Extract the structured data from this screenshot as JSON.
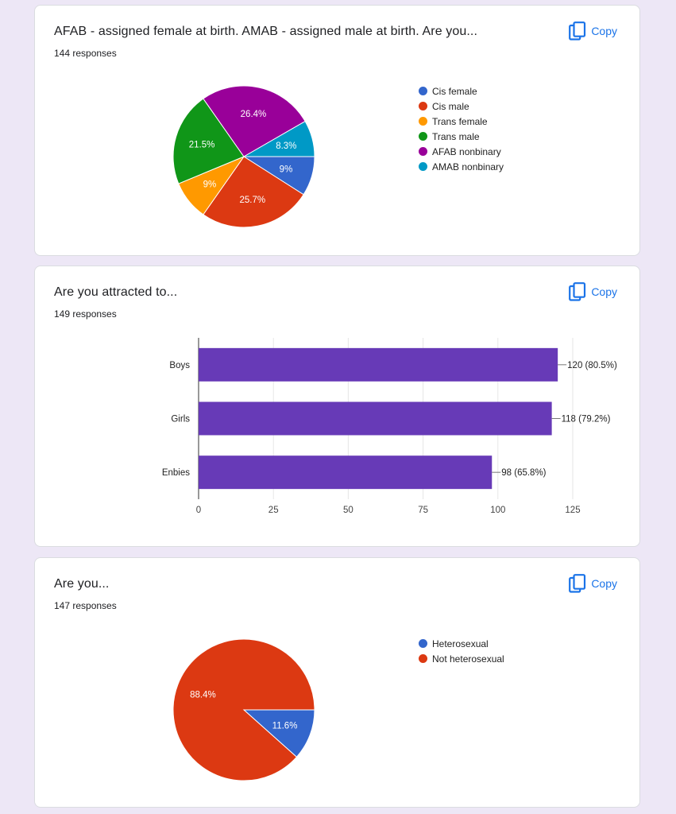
{
  "cards": [
    {
      "title": "AFAB - assigned female at birth. AMAB - assigned male at birth. Are you...",
      "responses": "144 responses",
      "copy_label": "Copy"
    },
    {
      "title": "Are you attracted to...",
      "responses": "149 responses",
      "copy_label": "Copy"
    },
    {
      "title": "Are you...",
      "responses": "147 responses",
      "copy_label": "Copy"
    }
  ],
  "icons": {
    "copy": "copy-icon"
  },
  "colors": {
    "background": "#ede7f6",
    "accent": "#1a73e8",
    "bar": "#673ab7"
  },
  "chart_data": [
    {
      "type": "pie",
      "slices": [
        {
          "label": "Cis female",
          "value": 9.0,
          "display": "9%",
          "color": "#3366cc"
        },
        {
          "label": "Cis male",
          "value": 25.7,
          "display": "25.7%",
          "color": "#dc3912"
        },
        {
          "label": "Trans female",
          "value": 9.0,
          "display": "9%",
          "color": "#ff9900"
        },
        {
          "label": "Trans male",
          "value": 21.5,
          "display": "21.5%",
          "color": "#109618"
        },
        {
          "label": "AFAB nonbinary",
          "value": 26.4,
          "display": "26.4%",
          "color": "#990099"
        },
        {
          "label": "AMAB nonbinary",
          "value": 8.3,
          "display": "8.3%",
          "color": "#0099c6"
        }
      ],
      "legend_position": "right"
    },
    {
      "type": "bar",
      "orientation": "horizontal",
      "categories": [
        "Boys",
        "Girls",
        "Enbies"
      ],
      "values": [
        120,
        118,
        98
      ],
      "labels": [
        "120 (80.5%)",
        "118 (79.2%)",
        "98 (65.8%)"
      ],
      "xlim": [
        0,
        125
      ],
      "ticks": [
        0,
        25,
        50,
        75,
        100,
        125
      ],
      "grid": true,
      "color": "#673ab7"
    },
    {
      "type": "pie",
      "slices": [
        {
          "label": "Heterosexual",
          "value": 11.6,
          "display": "11.6%",
          "color": "#3366cc"
        },
        {
          "label": "Not heterosexual",
          "value": 88.4,
          "display": "88.4%",
          "color": "#dc3912"
        }
      ],
      "legend_position": "right"
    }
  ]
}
